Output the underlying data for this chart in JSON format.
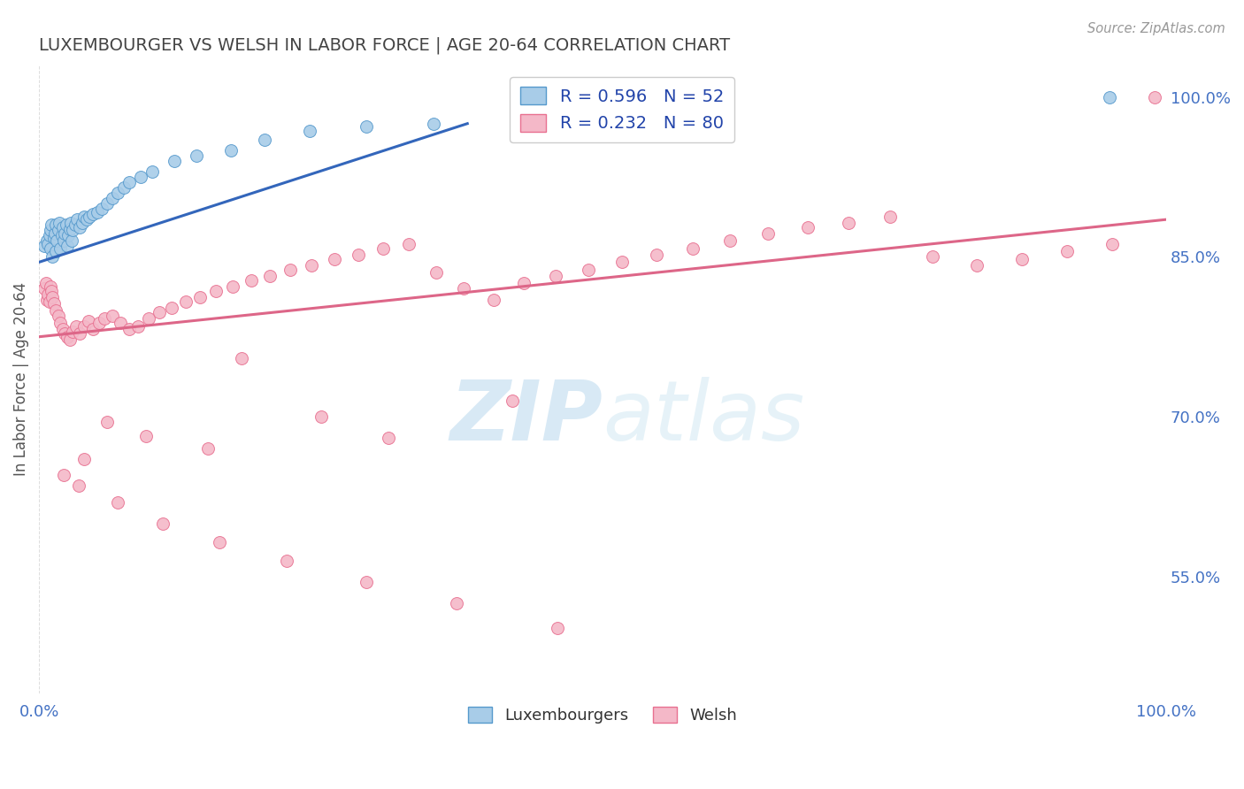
{
  "title": "LUXEMBOURGER VS WELSH IN LABOR FORCE | AGE 20-64 CORRELATION CHART",
  "source_text": "Source: ZipAtlas.com",
  "ylabel": "In Labor Force | Age 20-64",
  "watermark_zip": "ZIP",
  "watermark_atlas": "atlas",
  "blue_R": 0.596,
  "blue_N": 52,
  "pink_R": 0.232,
  "pink_N": 80,
  "blue_color": "#a8cce8",
  "pink_color": "#f4b8c8",
  "blue_edge_color": "#5599cc",
  "pink_edge_color": "#e87090",
  "blue_line_color": "#3366bb",
  "pink_line_color": "#dd6688",
  "xmin": 0.0,
  "xmax": 1.0,
  "ymin": 0.44,
  "ymax": 1.03,
  "right_yticks": [
    0.55,
    0.7,
    0.85,
    1.0
  ],
  "right_ytick_labels": [
    "55.0%",
    "70.0%",
    "85.0%",
    "100.0%"
  ],
  "blue_line_x0": 0.0,
  "blue_line_x1": 0.38,
  "blue_line_y0": 0.845,
  "blue_line_y1": 0.975,
  "pink_line_x0": 0.0,
  "pink_line_x1": 1.0,
  "pink_line_y0": 0.775,
  "pink_line_y1": 0.885,
  "background_color": "#ffffff",
  "grid_color": "#dddddd",
  "title_color": "#444444",
  "axis_label_color": "#555555",
  "right_label_color": "#4472c4",
  "bottom_label_color": "#4472c4",
  "blue_x": [
    0.005,
    0.007,
    0.008,
    0.009,
    0.01,
    0.01,
    0.011,
    0.012,
    0.013,
    0.014,
    0.015,
    0.015,
    0.016,
    0.017,
    0.018,
    0.019,
    0.02,
    0.021,
    0.022,
    0.023,
    0.024,
    0.025,
    0.026,
    0.027,
    0.028,
    0.029,
    0.03,
    0.032,
    0.034,
    0.036,
    0.038,
    0.04,
    0.042,
    0.045,
    0.048,
    0.052,
    0.056,
    0.06,
    0.065,
    0.07,
    0.075,
    0.08,
    0.09,
    0.1,
    0.12,
    0.14,
    0.17,
    0.2,
    0.24,
    0.29,
    0.35,
    0.95
  ],
  "blue_y": [
    0.86,
    0.865,
    0.862,
    0.87,
    0.858,
    0.875,
    0.88,
    0.85,
    0.868,
    0.872,
    0.88,
    0.855,
    0.865,
    0.875,
    0.882,
    0.858,
    0.87,
    0.878,
    0.865,
    0.872,
    0.88,
    0.86,
    0.87,
    0.876,
    0.882,
    0.865,
    0.875,
    0.88,
    0.885,
    0.878,
    0.882,
    0.888,
    0.885,
    0.888,
    0.89,
    0.892,
    0.895,
    0.9,
    0.905,
    0.91,
    0.915,
    0.92,
    0.925,
    0.93,
    0.94,
    0.945,
    0.95,
    0.96,
    0.968,
    0.972,
    0.975,
    1.0
  ],
  "pink_x": [
    0.005,
    0.006,
    0.007,
    0.008,
    0.009,
    0.01,
    0.011,
    0.012,
    0.013,
    0.015,
    0.017,
    0.019,
    0.021,
    0.023,
    0.025,
    0.027,
    0.03,
    0.033,
    0.036,
    0.04,
    0.044,
    0.048,
    0.053,
    0.058,
    0.065,
    0.072,
    0.08,
    0.088,
    0.097,
    0.107,
    0.118,
    0.13,
    0.143,
    0.157,
    0.172,
    0.188,
    0.205,
    0.223,
    0.242,
    0.262,
    0.283,
    0.305,
    0.328,
    0.352,
    0.377,
    0.403,
    0.43,
    0.458,
    0.487,
    0.517,
    0.548,
    0.58,
    0.613,
    0.647,
    0.682,
    0.718,
    0.755,
    0.793,
    0.832,
    0.872,
    0.912,
    0.952,
    0.25,
    0.18,
    0.31,
    0.42,
    0.15,
    0.095,
    0.06,
    0.04,
    0.022,
    0.035,
    0.07,
    0.11,
    0.16,
    0.22,
    0.29,
    0.37,
    0.46,
    0.99
  ],
  "pink_y": [
    0.82,
    0.825,
    0.81,
    0.815,
    0.808,
    0.822,
    0.818,
    0.812,
    0.806,
    0.8,
    0.795,
    0.788,
    0.782,
    0.778,
    0.775,
    0.772,
    0.78,
    0.785,
    0.778,
    0.785,
    0.79,
    0.782,
    0.788,
    0.792,
    0.795,
    0.788,
    0.782,
    0.785,
    0.792,
    0.798,
    0.802,
    0.808,
    0.812,
    0.818,
    0.822,
    0.828,
    0.832,
    0.838,
    0.842,
    0.848,
    0.852,
    0.858,
    0.862,
    0.835,
    0.82,
    0.81,
    0.825,
    0.832,
    0.838,
    0.845,
    0.852,
    0.858,
    0.865,
    0.872,
    0.878,
    0.882,
    0.888,
    0.85,
    0.842,
    0.848,
    0.855,
    0.862,
    0.7,
    0.755,
    0.68,
    0.715,
    0.67,
    0.682,
    0.695,
    0.66,
    0.645,
    0.635,
    0.62,
    0.6,
    0.582,
    0.565,
    0.545,
    0.525,
    0.502,
    1.0
  ]
}
